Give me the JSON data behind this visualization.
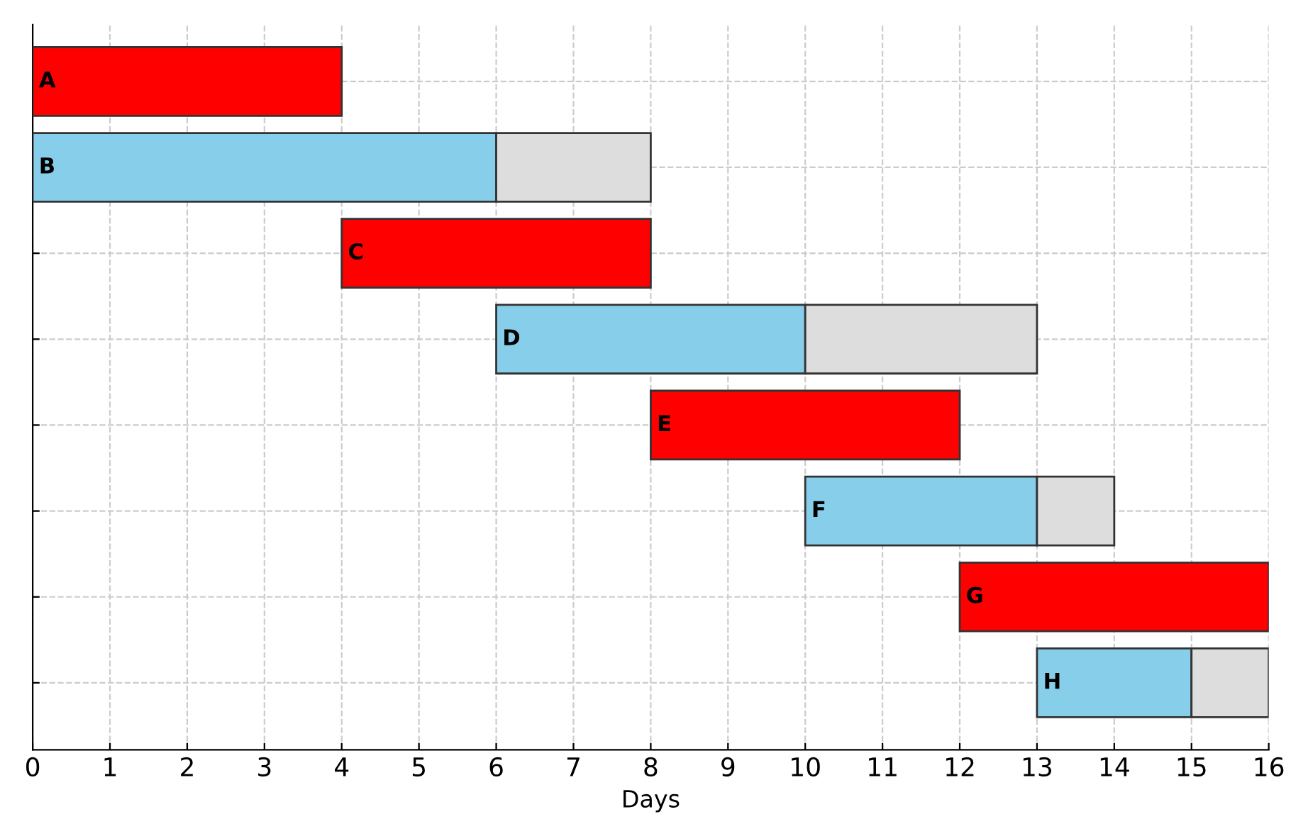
{
  "chart_data": {
    "type": "bar",
    "orientation": "horizontal",
    "categories": [
      null,
      null,
      null,
      null,
      null,
      null,
      null,
      null
    ],
    "series": [
      {
        "colors": [
          "#ff0000",
          "#87ceeb",
          "#ff0000",
          "#87ceeb",
          "#ff0000",
          "#87ceeb",
          "#ff0000",
          "#87ceeb"
        ],
        "base": [
          0,
          0,
          4,
          6,
          8,
          10,
          12,
          13
        ],
        "values": [
          4,
          6,
          4,
          4,
          4,
          3,
          4,
          2
        ]
      },
      {
        "color": "#dddddd",
        "base": [
          null,
          6,
          null,
          10,
          null,
          13,
          null,
          15
        ],
        "values": [
          null,
          2,
          null,
          3,
          null,
          1,
          null,
          1
        ]
      }
    ],
    "xlabel": "Days",
    "xlim": [
      0,
      16
    ],
    "xticks": [
      0,
      1,
      2,
      3,
      4,
      5,
      6,
      7,
      8,
      9,
      10,
      11,
      12,
      13,
      14,
      15,
      16
    ],
    "grid": true,
    "tick_labels": "x",
    "annotations": [
      "A",
      "B",
      "C",
      "D",
      "E",
      "F",
      "G",
      "H"
    ]
  }
}
